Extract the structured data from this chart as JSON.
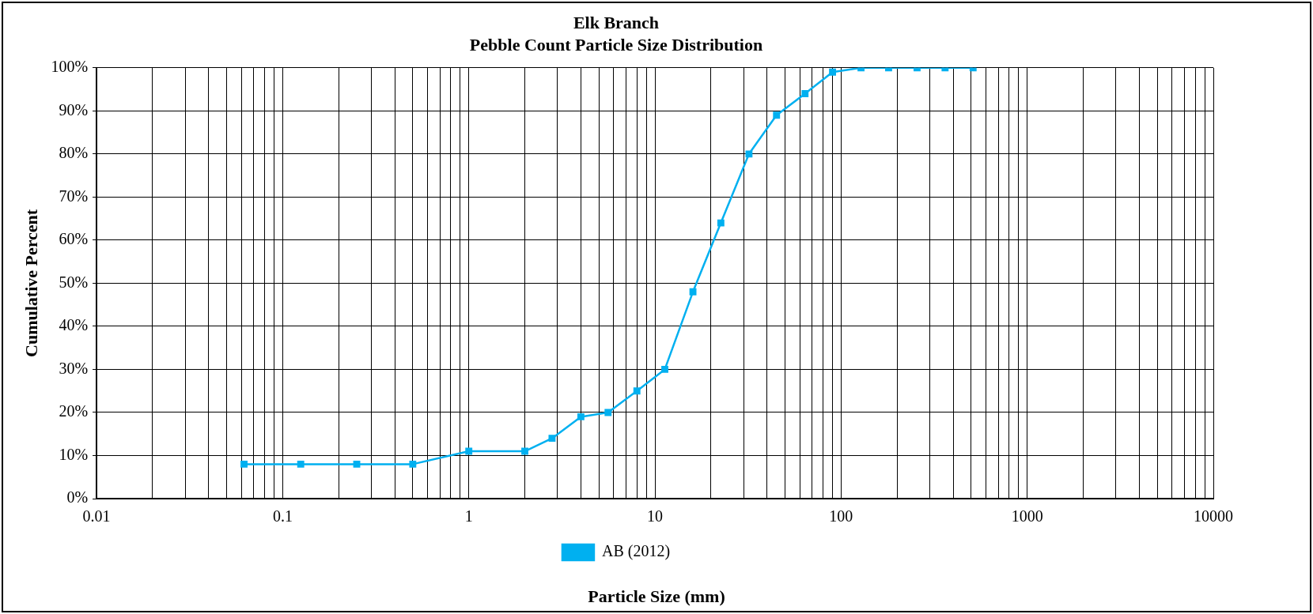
{
  "chart_data": {
    "type": "line",
    "title": "Elk Branch",
    "subtitle": "Pebble Count Particle Size Distribution",
    "xlabel": "Particle Size (mm)",
    "ylabel": "Cumulative Percent",
    "log": "x",
    "grid": true,
    "legend": "bottom",
    "marker": "square",
    "line_style": "solid",
    "xlim": [
      0.01,
      10000
    ],
    "xticks": [
      {
        "value": 0.01,
        "label": "0.01"
      },
      {
        "value": 0.02,
        "label": null
      },
      {
        "value": 0.03,
        "label": null
      },
      {
        "value": 0.04,
        "label": null
      },
      {
        "value": 0.05,
        "label": null
      },
      {
        "value": 0.06,
        "label": null
      },
      {
        "value": 0.07,
        "label": null
      },
      {
        "value": 0.08,
        "label": null
      },
      {
        "value": 0.09,
        "label": null
      },
      {
        "value": 0.1,
        "label": "0.1"
      },
      {
        "value": 0.2,
        "label": null
      },
      {
        "value": 0.3,
        "label": null
      },
      {
        "value": 0.4,
        "label": null
      },
      {
        "value": 0.5,
        "label": null
      },
      {
        "value": 0.6,
        "label": null
      },
      {
        "value": 0.7,
        "label": null
      },
      {
        "value": 0.8,
        "label": null
      },
      {
        "value": 0.9,
        "label": null
      },
      1,
      {
        "value": 2,
        "label": null
      },
      {
        "value": 3,
        "label": null
      },
      {
        "value": 4,
        "label": null
      },
      {
        "value": 5,
        "label": null
      },
      {
        "value": 6,
        "label": null
      },
      {
        "value": 7,
        "label": null
      },
      {
        "value": 8,
        "label": null
      },
      {
        "value": 9,
        "label": null
      },
      10,
      {
        "value": 20,
        "label": null
      },
      {
        "value": 30,
        "label": null
      },
      {
        "value": 40,
        "label": null
      },
      {
        "value": 50,
        "label": null
      },
      {
        "value": 60,
        "label": null
      },
      {
        "value": 70,
        "label": null
      },
      {
        "value": 80,
        "label": null
      },
      {
        "value": 90,
        "label": null
      },
      100,
      {
        "value": 200,
        "label": null
      },
      {
        "value": 300,
        "label": null
      },
      {
        "value": 400,
        "label": null
      },
      {
        "value": 500,
        "label": null
      },
      {
        "value": 600,
        "label": null
      },
      {
        "value": 700,
        "label": null
      },
      {
        "value": 800,
        "label": null
      },
      {
        "value": 900,
        "label": null
      },
      1000,
      {
        "value": 2000,
        "label": null
      },
      {
        "value": 3000,
        "label": null
      },
      {
        "value": 4000,
        "label": null
      },
      {
        "value": 5000,
        "label": null
      },
      {
        "value": 6000,
        "label": null
      },
      {
        "value": 7000,
        "label": null
      },
      {
        "value": 8000,
        "label": null
      },
      {
        "value": 9000,
        "label": null
      },
      10000
    ],
    "ylim": [
      0,
      100
    ],
    "yticks": [
      {
        "value": 0,
        "label": "0%"
      },
      {
        "value": 10,
        "label": "10%"
      },
      {
        "value": 20,
        "label": "20%"
      },
      {
        "value": 30,
        "label": "30%"
      },
      {
        "value": 40,
        "label": "40%"
      },
      {
        "value": 50,
        "label": "50%"
      },
      {
        "value": 60,
        "label": "60%"
      },
      {
        "value": 70,
        "label": "70%"
      },
      {
        "value": 80,
        "label": "80%"
      },
      {
        "value": 90,
        "label": "90%"
      },
      {
        "value": 100,
        "label": "100%"
      }
    ],
    "x": [
      0.062,
      0.125,
      0.25,
      0.5,
      1,
      2,
      2.8,
      4,
      5.6,
      8,
      11.3,
      16,
      22.6,
      32,
      45,
      64,
      90,
      128,
      180,
      256,
      362,
      512
    ],
    "series": [
      {
        "name": "AB (2012)",
        "color": "#00b0f0",
        "values": [
          8,
          8,
          8,
          8,
          11,
          11,
          14,
          19,
          20,
          25,
          30,
          48,
          64,
          80,
          89,
          94,
          99,
          100,
          100,
          100,
          100,
          100
        ]
      }
    ]
  }
}
